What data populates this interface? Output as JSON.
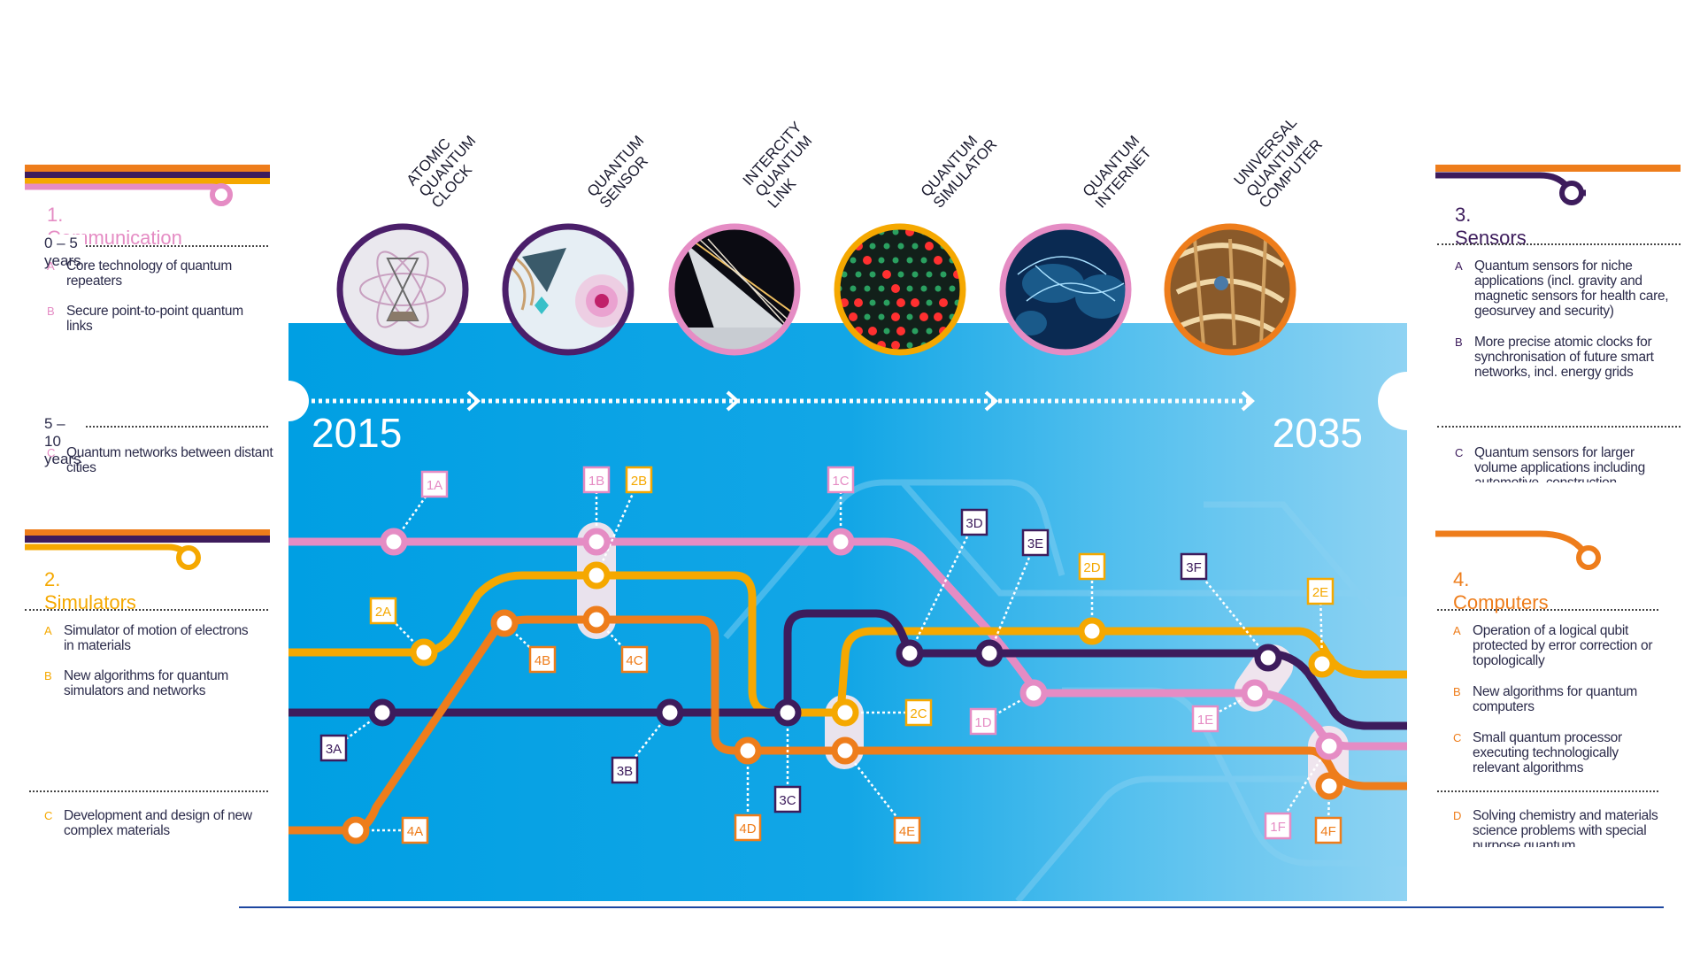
{
  "timeline": {
    "start_year": "2015",
    "end_year": "2035"
  },
  "milestones": [
    {
      "label": "ATOMIC\nQUANTUM\nCLOCK",
      "ring_color": "#4b1f6a"
    },
    {
      "label": "QUANTUM\nSENSOR",
      "ring_color": "#4b1f6a"
    },
    {
      "label": "INTERCITY\nQUANTUM\nLINK",
      "ring_color": "#e58cc4"
    },
    {
      "label": "QUANTUM\nSIMULATOR",
      "ring_color": "#f5a800"
    },
    {
      "label": "QUANTUM\nINTERNET",
      "ring_color": "#e58cc4"
    },
    {
      "label": "UNIVERSAL\nQUANTUM\nCOMPUTER",
      "ring_color": "#ee7d1b"
    }
  ],
  "colors": {
    "communication": "#e58cc4",
    "simulators": "#f5a800",
    "sensors": "#3d1c5c",
    "computers": "#ee7d1b",
    "background_blue": "#009fe3",
    "line_blue": "#1d47a0"
  },
  "left_panel": {
    "communication": {
      "title": "1. Communication",
      "groups": [
        {
          "years": "0 – 5 years",
          "items": [
            {
              "letter": "A",
              "text": "Core technology of quantum repeaters"
            },
            {
              "letter": "B",
              "text": "Secure point-to-point quantum links"
            }
          ]
        },
        {
          "years": "5 – 10 years",
          "items": [
            {
              "letter": "C",
              "text": "Quantum networks between distant cities"
            }
          ]
        }
      ]
    },
    "simulators": {
      "title": "2. Simulators",
      "items": [
        {
          "letter": "A",
          "text": "Simulator of motion of electrons in materials"
        },
        {
          "letter": "B",
          "text": "New algorithms for quantum simulators and networks"
        },
        {
          "letter": "C",
          "text": "Development and design of new complex materials"
        }
      ]
    }
  },
  "right_panel": {
    "sensors": {
      "title": "3. Sensors",
      "items": [
        {
          "letter": "A",
          "text": "Quantum sensors for niche applications (incl. gravity and magnetic sensors for health care, geosurvey and security)"
        },
        {
          "letter": "B",
          "text": "More precise atomic clocks for synchronisation of future smart networks, incl. energy grids"
        },
        {
          "letter": "C",
          "text": "Quantum sensors for larger volume applications including automotive, construction"
        }
      ]
    },
    "computers": {
      "title": "4. Computers",
      "items": [
        {
          "letter": "A",
          "text": "Operation of a logical qubit protected by error correction or topologically"
        },
        {
          "letter": "B",
          "text": "New algorithms for quantum computers"
        },
        {
          "letter": "C",
          "text": "Small quantum processor executing technologically relevant algorithms"
        },
        {
          "letter": "D",
          "text": "Solving chemistry and materials science problems with special purpose quantum"
        }
      ]
    }
  },
  "map_labels": {
    "1A": "1A",
    "1B": "1B",
    "1C": "1C",
    "1D": "1D",
    "1E": "1E",
    "1F": "1F",
    "2A": "2A",
    "2B": "2B",
    "2C": "2C",
    "2D": "2D",
    "2E": "2E",
    "3A": "3A",
    "3B": "3B",
    "3C": "3C",
    "3D": "3D",
    "3E": "3E",
    "3F": "3F",
    "4A": "4A",
    "4B": "4B",
    "4C": "4C",
    "4D": "4D",
    "4E": "4E",
    "4F": "4F"
  }
}
